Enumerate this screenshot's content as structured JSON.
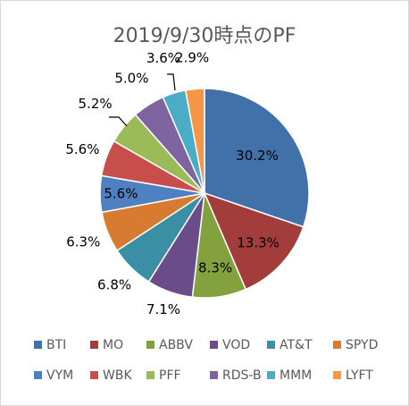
{
  "chart_data": {
    "type": "pie",
    "title": "2019/9/30時点のPF",
    "categories": [
      "BTI",
      "MO",
      "ABBV",
      "VOD",
      "AT&T",
      "SPYD",
      "VYM",
      "WBK",
      "PFF",
      "RDS-B",
      "MMM",
      "LYFT"
    ],
    "values": [
      30.2,
      13.3,
      8.3,
      7.1,
      6.8,
      6.3,
      5.6,
      5.6,
      5.2,
      5.0,
      3.6,
      2.9
    ],
    "labels": [
      "30.2%",
      "13.3%",
      "8.3%",
      "7.1%",
      "6.8%",
      "6.3%",
      "5.6%",
      "5.6%",
      "5.2%",
      "5.0%",
      "3.6%",
      "2.9%"
    ],
    "colors": [
      "#4270A8",
      "#A33D3B",
      "#84A13F",
      "#6A4C8B",
      "#3A8FA5",
      "#D67B30",
      "#4F80C2",
      "#C74E4A",
      "#9BBB59",
      "#8064A2",
      "#4BACC6",
      "#F79646"
    ],
    "legend_position": "bottom",
    "start_angle_deg": 0,
    "direction": "clockwise"
  }
}
